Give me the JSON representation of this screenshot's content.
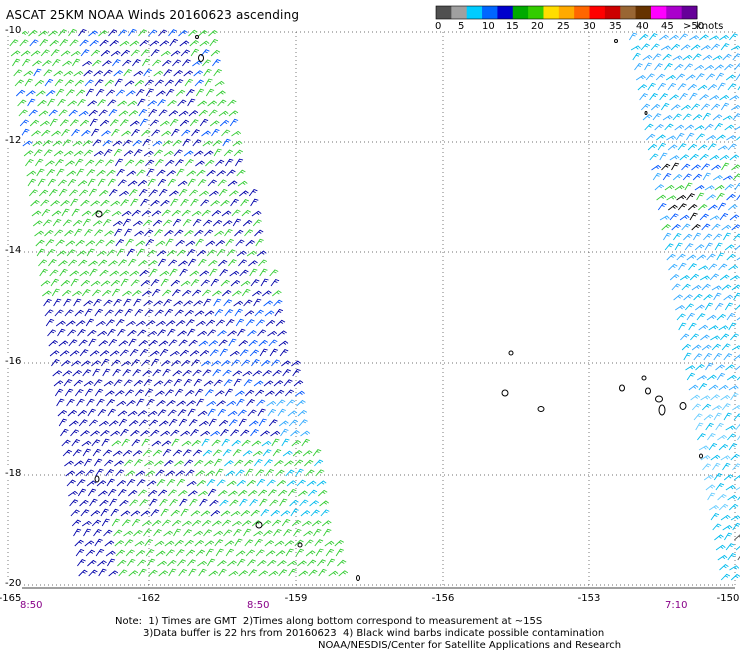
{
  "title": "ASCAT 25KM NOAA Winds 20160623 ascending",
  "legend": {
    "colors": [
      "#505050",
      "#a0a0a0",
      "#00ccff",
      "#0066ff",
      "#0000cc",
      "#00aa00",
      "#33cc00",
      "#ffdd00",
      "#ffaa00",
      "#ff6600",
      "#ff0000",
      "#cc0000",
      "#996633",
      "#663300",
      "#ff00ff",
      "#aa00cc",
      "#660099"
    ],
    "labels": [
      "0",
      "5",
      "10",
      "15",
      "20",
      "25",
      "30",
      "35",
      "40",
      "45",
      ">50"
    ],
    "unit": "knots"
  },
  "map": {
    "lon_ticks": [
      "-165",
      "-162",
      "-159",
      "-156",
      "-153",
      "-150"
    ],
    "lat_ticks": [
      "-10",
      "-12",
      "-14",
      "-16",
      "-18",
      "-20"
    ],
    "swath_times": [
      "8:50",
      "8:50",
      "7:10"
    ]
  },
  "notes": {
    "line1": "Note:  1) Times are GMT  2)Times along bottom correspond to measurement at ~15S",
    "line2": "3)Data buffer is 22 hrs from 20160623  4) Black wind barbs indicate possible contamination",
    "line3": "NOAA/NESDIS/Center for Satellite Applications and Research"
  }
}
